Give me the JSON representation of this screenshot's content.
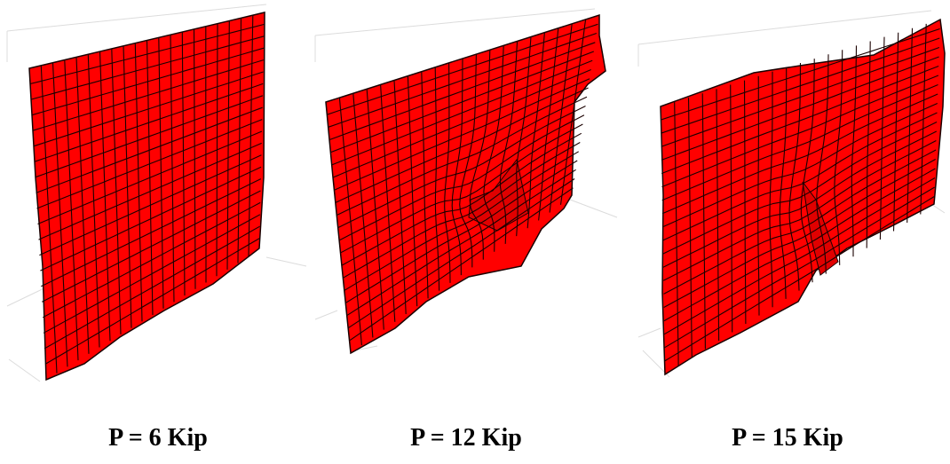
{
  "figure": {
    "panels": [
      {
        "label": "P = 6 Kip"
      },
      {
        "label": "P = 12 Kip"
      },
      {
        "label": "P = 15 Kip"
      }
    ],
    "colors": {
      "mesh_fill": "#ff0000",
      "mesh_lines": "#1a0000",
      "axis_box": "#d8d8d8",
      "background": "#ffffff",
      "caption": "#000000"
    }
  }
}
